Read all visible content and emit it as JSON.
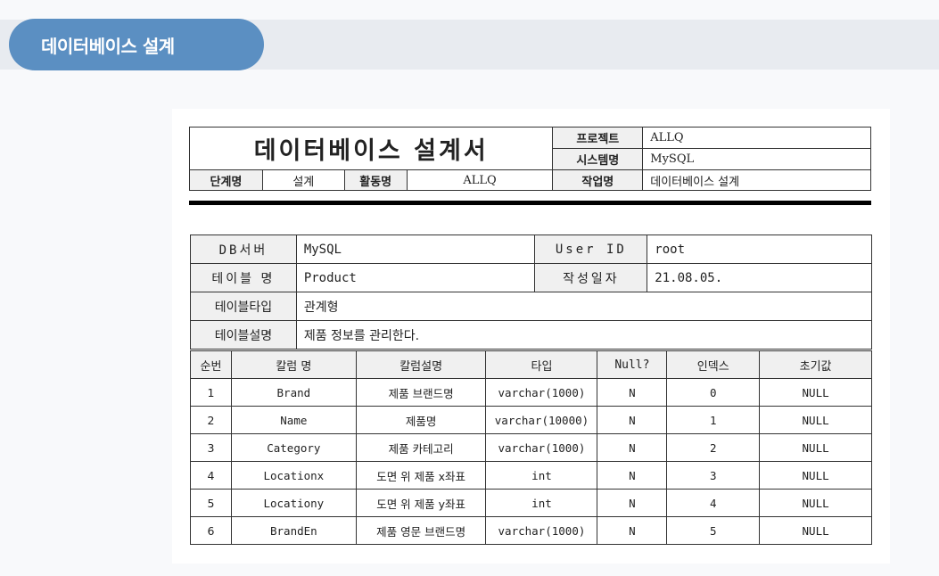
{
  "section": {
    "title": "데이터베이스 설계"
  },
  "header": {
    "doc_title": "데이터베이스 설계서",
    "project_label": "프로젝트",
    "project_value": "ALLQ",
    "system_label": "시스템명",
    "system_value": "MySQL",
    "stage_label": "단계명",
    "stage_value": "설계",
    "activity_label": "활동명",
    "activity_value": "ALLQ",
    "task_label": "작업명",
    "task_value": "데이터베이스 설계"
  },
  "info": {
    "db_server_label": "DB서버",
    "db_server_value": "MySQL",
    "user_id_label": "User ID",
    "user_id_value": "root",
    "table_name_label": "테이블 명",
    "table_name_value": "Product",
    "created_label": "작성일자",
    "created_value": "21.08.05.",
    "table_type_label": "테이블타입",
    "table_type_value": "관계형",
    "table_desc_label": "테이블설명",
    "table_desc_value": "제품 정보를 관리한다."
  },
  "columns": {
    "headers": [
      "순번",
      "칼럼 명",
      "칼럼설명",
      "타입",
      "Null?",
      "인덱스",
      "초기값"
    ],
    "rows": [
      [
        "1",
        "Brand",
        "제품 브랜드명",
        "varchar(1000)",
        "N",
        "0",
        "NULL"
      ],
      [
        "2",
        "Name",
        "제품명",
        "varchar(10000)",
        "N",
        "1",
        "NULL"
      ],
      [
        "3",
        "Category",
        "제품 카테고리",
        "varchar(1000)",
        "N",
        "2",
        "NULL"
      ],
      [
        "4",
        "Locationx",
        "도면 위 제품 x좌표",
        "int",
        "N",
        "3",
        "NULL"
      ],
      [
        "5",
        "Locationy",
        "도면 위 제품 y좌표",
        "int",
        "N",
        "4",
        "NULL"
      ],
      [
        "6",
        "BrandEn",
        "제품 영문 브랜드명",
        "varchar(1000)",
        "N",
        "5",
        "NULL"
      ]
    ]
  }
}
